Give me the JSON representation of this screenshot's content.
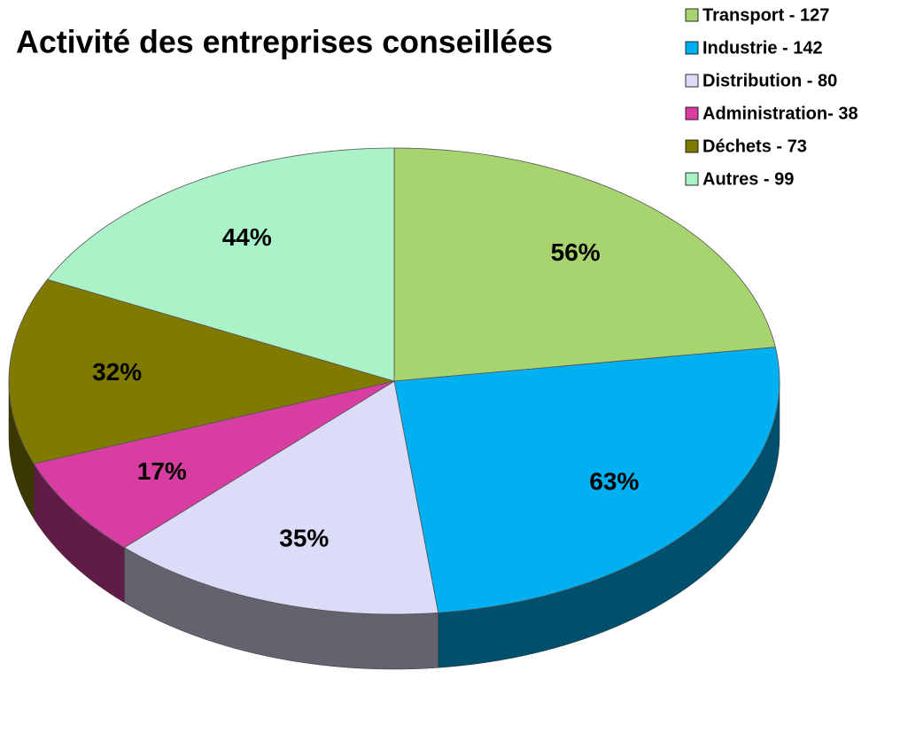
{
  "chart_data": {
    "type": "pie",
    "title": "Activité des entreprises conseillées",
    "categories": [
      "Transport - 127",
      "Industrie - 142",
      "Distribution - 80",
      "Administration- 38",
      "Déchets - 73",
      "Autres - 99"
    ],
    "values": [
      56,
      63,
      35,
      17,
      32,
      44
    ],
    "value_labels": [
      "56%",
      "63%",
      "35%",
      "17%",
      "32%",
      "44%"
    ],
    "colors": [
      "#a8d46f",
      "#00b0f0",
      "#dcdcf8",
      "#d83da2",
      "#807a00",
      "#aaf2c8"
    ],
    "legend": "top-right"
  }
}
